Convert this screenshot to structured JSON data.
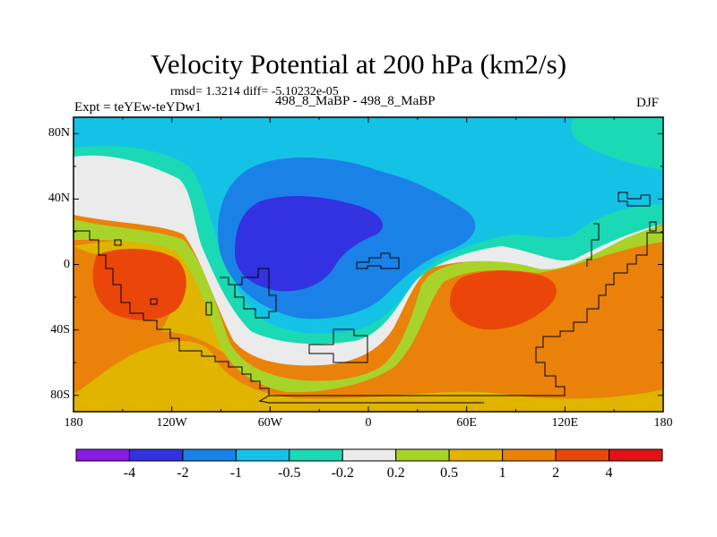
{
  "chart_data": {
    "type": "heatmap",
    "title": "Velocity Potential at 200 hPa (km2/s)",
    "subtitle_stats": "rmsd= 1.3214 diff= -5.10232e-05",
    "left_label": "Expt = teYEw-teYDw1",
    "center_label": "498_8_MaBP - 498_8_MaBP",
    "right_label": "DJF",
    "xlim": [
      -180,
      180
    ],
    "ylim": [
      -90,
      90
    ],
    "x_ticks": [
      {
        "value": -180,
        "label": "180"
      },
      {
        "value": -120,
        "label": "120W"
      },
      {
        "value": -60,
        "label": "60W"
      },
      {
        "value": 0,
        "label": "0"
      },
      {
        "value": 60,
        "label": "60E"
      },
      {
        "value": 120,
        "label": "120E"
      },
      {
        "value": 180,
        "label": "180"
      }
    ],
    "y_ticks": [
      {
        "value": 80,
        "label": "80N"
      },
      {
        "value": 40,
        "label": "40N"
      },
      {
        "value": 0,
        "label": "0"
      },
      {
        "value": -40,
        "label": "40S"
      },
      {
        "value": -80,
        "label": "80S"
      }
    ],
    "colorbar": {
      "levels": [
        -4,
        -2,
        -1,
        -0.5,
        -0.2,
        0.2,
        0.5,
        1,
        2,
        4
      ],
      "labels": [
        "-4",
        "-2",
        "-1",
        "-0.5",
        "-0.2",
        "0.2",
        "0.5",
        "1",
        "2",
        "4"
      ],
      "colors": [
        "#8a19e6",
        "#3232e0",
        "#1a82e6",
        "#14c2e6",
        "#1ad9b4",
        "#ebebeb",
        "#a8d42a",
        "#e0b400",
        "#ea820a",
        "#eb460a",
        "#e01414"
      ]
    }
  }
}
